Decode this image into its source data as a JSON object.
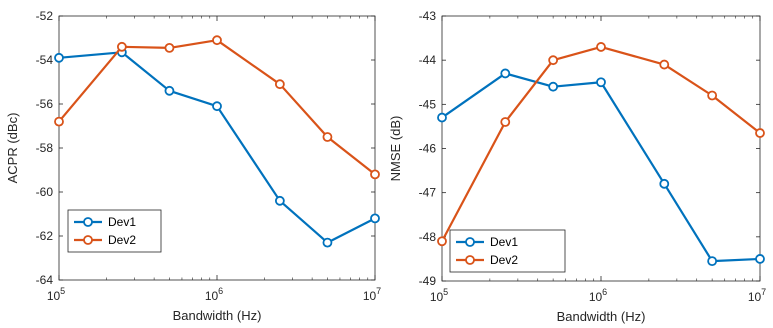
{
  "chart_data": [
    {
      "type": "line",
      "xlabel": "Bandwidth (Hz)",
      "ylabel": "ACPR (dBc)",
      "x_scale": "log",
      "xlim": [
        100000,
        10000000
      ],
      "ylim": [
        -64,
        -52
      ],
      "x_ticks": [
        {
          "value": 100000,
          "base": "10",
          "exp": "5"
        },
        {
          "value": 1000000,
          "base": "10",
          "exp": "6"
        },
        {
          "value": 10000000,
          "base": "10",
          "exp": "7"
        }
      ],
      "y_ticks": [
        "-52",
        "-54",
        "-56",
        "-58",
        "-60",
        "-62",
        "-64"
      ],
      "grid": false,
      "legend_position": "bottom-left",
      "x": [
        100000,
        250000,
        500000,
        1000000,
        2500000,
        5000000,
        10000000
      ],
      "series": [
        {
          "name": "Dev1",
          "color": "#0072BD",
          "values": [
            -53.9,
            -53.65,
            -55.4,
            -56.1,
            -60.4,
            -62.3,
            -61.2
          ]
        },
        {
          "name": "Dev2",
          "color": "#D95319",
          "values": [
            -56.8,
            -53.4,
            -53.45,
            -53.1,
            -55.1,
            -57.5,
            -59.2
          ]
        }
      ]
    },
    {
      "type": "line",
      "xlabel": "Bandwidth (Hz)",
      "ylabel": "NMSE (dB)",
      "x_scale": "log",
      "xlim": [
        100000,
        10000000
      ],
      "ylim": [
        -49,
        -43
      ],
      "x_ticks": [
        {
          "value": 100000,
          "base": "10",
          "exp": "5"
        },
        {
          "value": 1000000,
          "base": "10",
          "exp": "6"
        },
        {
          "value": 10000000,
          "base": "10",
          "exp": "7"
        }
      ],
      "y_ticks": [
        "-43",
        "-44",
        "-45",
        "-46",
        "-47",
        "-48",
        "-49"
      ],
      "grid": false,
      "legend_position": "bottom-left",
      "x": [
        100000,
        250000,
        500000,
        1000000,
        2500000,
        5000000,
        10000000
      ],
      "series": [
        {
          "name": "Dev1",
          "color": "#0072BD",
          "values": [
            -45.3,
            -44.3,
            -44.6,
            -44.5,
            -46.8,
            -48.55,
            -48.5
          ]
        },
        {
          "name": "Dev2",
          "color": "#D95319",
          "values": [
            -48.1,
            -45.4,
            -44.0,
            -43.7,
            -44.1,
            -44.8,
            -45.65
          ]
        }
      ]
    }
  ]
}
